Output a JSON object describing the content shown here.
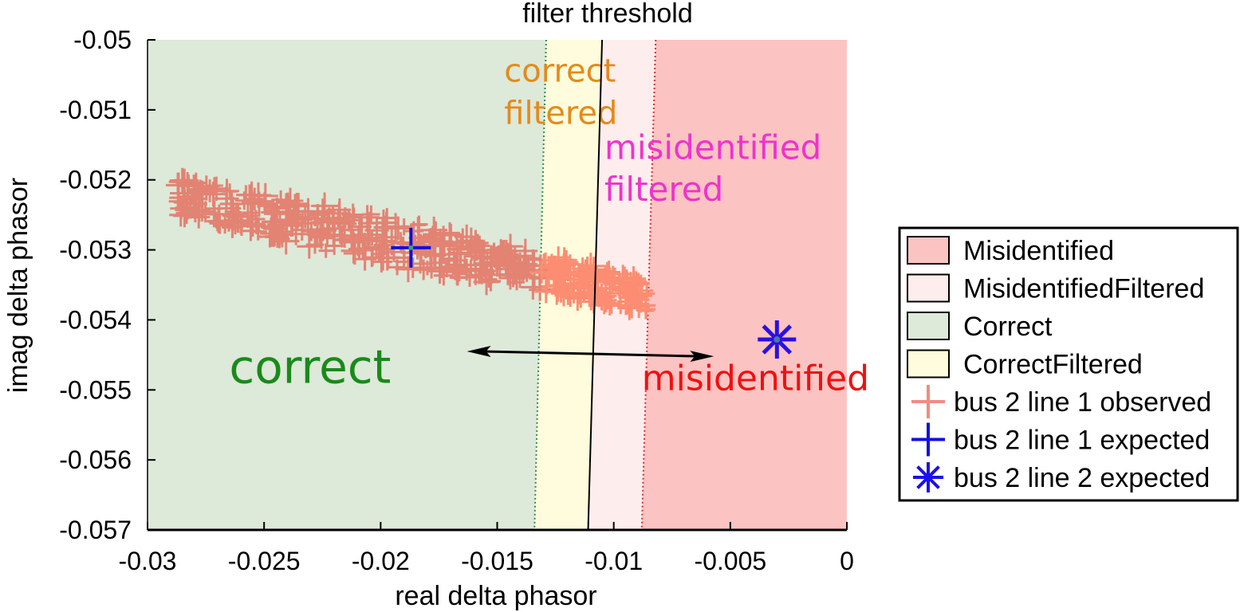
{
  "chart_data": {
    "type": "scatter",
    "xlabel": "real delta phasor",
    "ylabel": "imag delta phasor",
    "xlim": [
      -0.03,
      0
    ],
    "ylim": [
      -0.057,
      -0.05
    ],
    "xticks": [
      "-0.03",
      "-0.025",
      "-0.02",
      "-0.015",
      "-0.01",
      "-0.005",
      "0"
    ],
    "yticks": [
      "-0.05",
      "-0.051",
      "-0.052",
      "-0.053",
      "-0.054",
      "-0.055",
      "-0.056",
      "-0.057"
    ],
    "threshold_label": "filter threshold",
    "regions": [
      {
        "name": "Correct",
        "color": "#dde9d9"
      },
      {
        "name": "CorrectFiltered",
        "color": "#fefcdc"
      },
      {
        "name": "MisidentifiedFiltered",
        "color": "#fdeded"
      },
      {
        "name": "Misidentified",
        "color": "#fcc3c3"
      }
    ],
    "boundaries": {
      "correct_limit": {
        "top": [
          -0.0129,
          -0.05
        ],
        "bottom": [
          -0.0134,
          -0.057
        ],
        "color": "#2f8f4f"
      },
      "filter_threshold": {
        "top": [
          -0.0105,
          -0.05
        ],
        "bottom": [
          -0.0111,
          -0.057
        ],
        "color": "#000000"
      },
      "misidentified_limit": {
        "top": [
          -0.0082,
          -0.05
        ],
        "bottom": [
          -0.0088,
          -0.057
        ],
        "color": "#e03030"
      }
    },
    "annotations": [
      {
        "text": "correct",
        "color": "#1a8a1a",
        "x": -0.0265,
        "y": -0.0549
      },
      {
        "text": "correct",
        "color": "#e48a1a",
        "x": -0.0147,
        "y": -0.0506
      },
      {
        "text": "filtered",
        "color": "#e48a1a",
        "x": -0.0147,
        "y": -0.0512
      },
      {
        "text": "misidentified",
        "color": "#ee33cc",
        "x": -0.0104,
        "y": -0.0517
      },
      {
        "text": "filtered",
        "color": "#ee33cc",
        "x": -0.0104,
        "y": -0.0523
      },
      {
        "text": "misidentified",
        "color": "#ee1111",
        "x": -0.0088,
        "y": -0.055
      }
    ],
    "arrow": {
      "from": [
        -0.0163,
        -0.05445
      ],
      "to": [
        -0.0057,
        -0.05452
      ],
      "color": "#000000"
    },
    "observed_cloud": {
      "x_start": -0.0287,
      "x_end": -0.0085,
      "y_start": -0.05225,
      "y_end": -0.05365,
      "spread": 0.00035,
      "color_correct": "#e38373",
      "color_filtered": "#fc8d72"
    },
    "series": [
      {
        "name": "bus 2 line 1 observed",
        "marker": "plus",
        "color": "#f08c80"
      },
      {
        "name": "bus 2 line 1 expected",
        "marker": "plus",
        "color": "#1010dd",
        "x": [
          -0.0187
        ],
        "y": [
          -0.05297
        ]
      },
      {
        "name": "bus 2 line 2 expected",
        "marker": "asterisk",
        "color": "#2a10e0",
        "x": [
          -0.003
        ],
        "y": [
          -0.05428
        ]
      }
    ],
    "legend": {
      "position": "right",
      "entries": [
        {
          "label": "Misidentified",
          "kind": "patch",
          "color": "#fcc3c3"
        },
        {
          "label": "MisidentifiedFiltered",
          "kind": "patch",
          "color": "#fdeded"
        },
        {
          "label": "Correct",
          "kind": "patch",
          "color": "#dde9d9"
        },
        {
          "label": "CorrectFiltered",
          "kind": "patch",
          "color": "#fefcdc"
        },
        {
          "label": "bus 2 line 1 observed",
          "kind": "plus",
          "color": "#f08c80"
        },
        {
          "label": "bus 2 line 1 expected",
          "kind": "plus",
          "color": "#1010dd"
        },
        {
          "label": "bus 2 line 2 expected",
          "kind": "asterisk",
          "color": "#1a10ee"
        }
      ]
    }
  }
}
